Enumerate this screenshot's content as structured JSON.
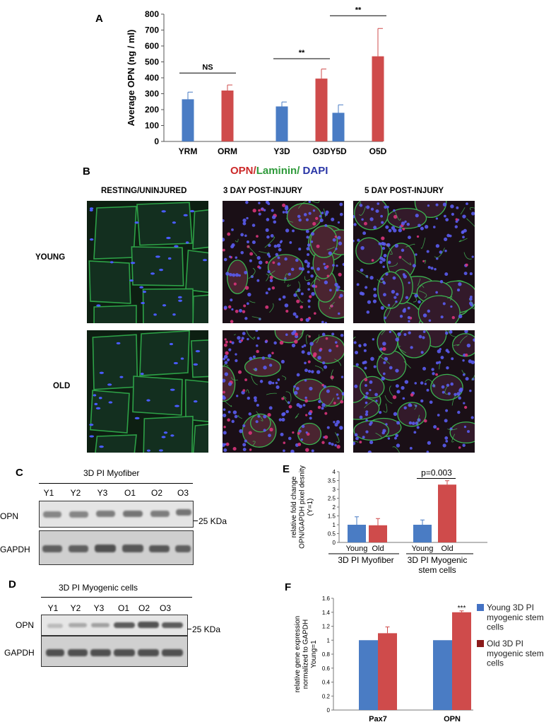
{
  "panel_a": {
    "letter": "A",
    "chart_data": {
      "type": "bar",
      "categories": [
        "YRM",
        "ORM",
        "Y3D",
        "O3D",
        "Y5D",
        "O5D"
      ],
      "values": [
        265,
        320,
        220,
        395,
        180,
        535
      ],
      "errors": [
        45,
        35,
        28,
        60,
        50,
        175
      ],
      "colors": [
        "#4a7cc4",
        "#cf4b4b",
        "#4a7cc4",
        "#cf4b4b",
        "#4a7cc4",
        "#cf4b4b"
      ],
      "ylabel": "Average OPN (ng / ml)",
      "ylim": [
        0,
        800
      ],
      "yticks": [
        0,
        100,
        200,
        300,
        400,
        500,
        600,
        700,
        800
      ],
      "annotations": [
        {
          "text": "NS",
          "pair": [
            0,
            1
          ]
        },
        {
          "text": "**",
          "pair": [
            2,
            3
          ]
        },
        {
          "text": "**",
          "pair": [
            4,
            5
          ]
        }
      ]
    }
  },
  "panel_b": {
    "letter": "B",
    "stain_title": {
      "opn": "OPN",
      "sep1": "/",
      "laminin": "Laminin",
      "sep2": "/",
      "dapi": " DAPI"
    },
    "stain_colors": {
      "opn": "#cc2a2a",
      "laminin": "#2e9a3a",
      "dapi": "#2a36a6"
    },
    "columns": [
      "RESTING/UNINJURED",
      "3 DAY POST-INJURY",
      "5 DAY POST-INJURY"
    ],
    "rows": [
      "YOUNG",
      "OLD"
    ]
  },
  "panel_c": {
    "letter": "C",
    "title": "3D PI Myofiber",
    "lanes": [
      "Y1",
      "Y2",
      "Y3",
      "O1",
      "O2",
      "O3"
    ],
    "row_labels": [
      "OPN",
      "GAPDH"
    ],
    "marker": "25 KDa"
  },
  "panel_d": {
    "letter": "D",
    "title": "3D PI Myogenic cells",
    "lanes": [
      "Y1",
      "Y2",
      "Y3",
      "O1",
      "O2",
      "O3"
    ],
    "row_labels": [
      "OPN",
      "GAPDH"
    ],
    "marker": "25 KDa"
  },
  "panel_e": {
    "letter": "E",
    "chart_data": {
      "type": "bar",
      "groups": [
        "3D PI Myofiber",
        "3D PI Myogenic\nstem cells"
      ],
      "categories": [
        "Young",
        "Old",
        "Young",
        "Old"
      ],
      "values": [
        1.0,
        0.97,
        1.0,
        3.27
      ],
      "errors": [
        0.45,
        0.38,
        0.27,
        0.22
      ],
      "colors": [
        "#4a7cc4",
        "#cf4b4b",
        "#4a7cc4",
        "#cf4b4b"
      ],
      "ylabel": "relative fold change\nOPN/GAPDH pixel desnity\n(Y=1)",
      "ylim": [
        0,
        4
      ],
      "yticks": [
        0,
        0.5,
        1,
        1.5,
        2,
        2.5,
        3,
        3.5,
        4
      ],
      "annotation": "p=0.003"
    }
  },
  "panel_f": {
    "letter": "F",
    "chart_data": {
      "type": "bar",
      "categories": [
        "Pax7",
        "OPN"
      ],
      "series": [
        {
          "name": "Young 3D PI myogenic stem cells",
          "values": [
            1.0,
            1.0
          ],
          "color": "#4a7cc4"
        },
        {
          "name": "Old 3D PI myogenic stem cells",
          "values": [
            1.1,
            1.4
          ],
          "color": "#cf4b4b",
          "errors": [
            0.09,
            0.02
          ]
        }
      ],
      "ylabel": "relative gene expression\nnormalized to GAPDH\nYoung=1",
      "ylim": [
        0,
        1.6
      ],
      "yticks": [
        0,
        0.2,
        0.4,
        0.6,
        0.8,
        1,
        1.2,
        1.4,
        1.6
      ],
      "annotation": "***",
      "legend_position": "right",
      "legend_lines": [
        [
          "Young 3D PI",
          "myogenic stem",
          "cells"
        ],
        [
          "Old 3D PI",
          "myogenic stem",
          "cells"
        ]
      ],
      "legend_swatch_colors": [
        "#4472c4",
        "#8b1a1a"
      ]
    }
  }
}
